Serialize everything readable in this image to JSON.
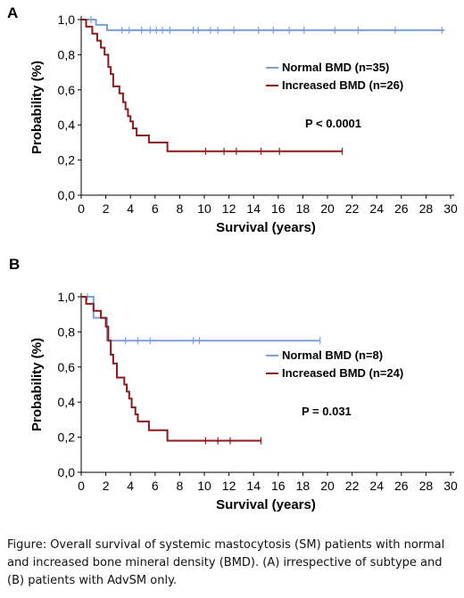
{
  "chart_data": [
    {
      "type": "line",
      "panel_label": "A",
      "xlabel": "Survival (years)",
      "ylabel": "Probability (%)",
      "xlim": [
        0,
        30
      ],
      "ylim": [
        0,
        1
      ],
      "xticks": [
        0,
        2,
        4,
        6,
        8,
        10,
        12,
        14,
        16,
        18,
        20,
        22,
        24,
        26,
        28,
        30
      ],
      "xtick_labels": [
        "0",
        "2",
        "4",
        "6",
        "8",
        "10",
        "12",
        "14",
        "16",
        "18",
        "20",
        "22",
        "24",
        "26",
        "28",
        "30"
      ],
      "yticks": [
        0,
        0.2,
        0.4,
        0.6,
        0.8,
        1.0
      ],
      "ytick_labels": [
        "0,0",
        "0,2",
        "0,4",
        "0,6",
        "0,8",
        "1,0"
      ],
      "annotation": "P < 0.0001",
      "series": [
        {
          "name": "Normal BMD (n=35)",
          "color": "#7a9fd9",
          "steps": [
            [
              0,
              1.0
            ],
            [
              1.2,
              0.97
            ],
            [
              2.1,
              0.94
            ],
            [
              29.5,
              0.94
            ]
          ],
          "censored": [
            0.8,
            3.3,
            3.9,
            4.9,
            5.6,
            6.1,
            6.6,
            7.2,
            9.1,
            9.5,
            10.5,
            11.1,
            12.4,
            14.4,
            15.6,
            16.9,
            18.1,
            20.6,
            22.5,
            25.5,
            29.3
          ]
        },
        {
          "name": "Increased BMD (n=26)",
          "color": "#8b1a1a",
          "steps": [
            [
              0,
              1.0
            ],
            [
              0.4,
              0.96
            ],
            [
              0.9,
              0.92
            ],
            [
              1.3,
              0.88
            ],
            [
              1.6,
              0.84
            ],
            [
              1.9,
              0.8
            ],
            [
              2.2,
              0.73
            ],
            [
              2.4,
              0.69
            ],
            [
              2.6,
              0.62
            ],
            [
              3.1,
              0.58
            ],
            [
              3.4,
              0.53
            ],
            [
              3.6,
              0.49
            ],
            [
              3.8,
              0.45
            ],
            [
              4.0,
              0.42
            ],
            [
              4.2,
              0.38
            ],
            [
              4.5,
              0.34
            ],
            [
              5.5,
              0.3
            ],
            [
              7.0,
              0.25
            ],
            [
              21.2,
              0.25
            ]
          ],
          "censored": [
            10.1,
            11.6,
            12.6,
            14.6,
            16.1,
            21.2
          ]
        }
      ]
    },
    {
      "type": "line",
      "panel_label": "B",
      "xlabel": "Survival (years)",
      "ylabel": "Probability (%)",
      "xlim": [
        0,
        30
      ],
      "ylim": [
        0,
        1
      ],
      "xticks": [
        0,
        2,
        4,
        6,
        8,
        10,
        12,
        14,
        16,
        18,
        20,
        22,
        24,
        26,
        28,
        30
      ],
      "xtick_labels": [
        "0",
        "2",
        "4",
        "6",
        "8",
        "10",
        "12",
        "14",
        "16",
        "18",
        "20",
        "22",
        "24",
        "26",
        "28",
        "30"
      ],
      "yticks": [
        0,
        0.2,
        0.4,
        0.6,
        0.8,
        1.0
      ],
      "ytick_labels": [
        "0,0",
        "0,2",
        "0,4",
        "0,6",
        "0,8",
        "1,0"
      ],
      "annotation": "P = 0.031",
      "series": [
        {
          "name": "Normal BMD (n=8)",
          "color": "#7a9fd9",
          "steps": [
            [
              0,
              1.0
            ],
            [
              1.0,
              0.88
            ],
            [
              2.1,
              0.75
            ],
            [
              19.4,
              0.75
            ]
          ],
          "censored": [
            0.5,
            3.6,
            4.6,
            5.6,
            9.1,
            9.6,
            19.4
          ]
        },
        {
          "name": "Increased BMD (n=24)",
          "color": "#8b1a1a",
          "steps": [
            [
              0,
              1.0
            ],
            [
              0.4,
              0.96
            ],
            [
              1.0,
              0.92
            ],
            [
              1.6,
              0.88
            ],
            [
              2.0,
              0.83
            ],
            [
              2.2,
              0.75
            ],
            [
              2.4,
              0.67
            ],
            [
              2.6,
              0.62
            ],
            [
              2.9,
              0.54
            ],
            [
              3.5,
              0.5
            ],
            [
              3.7,
              0.46
            ],
            [
              3.9,
              0.42
            ],
            [
              4.1,
              0.37
            ],
            [
              4.4,
              0.33
            ],
            [
              4.6,
              0.29
            ],
            [
              5.5,
              0.24
            ],
            [
              7.0,
              0.18
            ],
            [
              14.6,
              0.18
            ]
          ],
          "censored": [
            10.1,
            11.1,
            12.1,
            14.6
          ]
        }
      ]
    }
  ],
  "caption": "Figure: Overall survival of systemic mastocytosis (SM) patients with normal and increased bone mineral density (BMD). (A) irrespective of subtype and (B) patients with AdvSM only."
}
